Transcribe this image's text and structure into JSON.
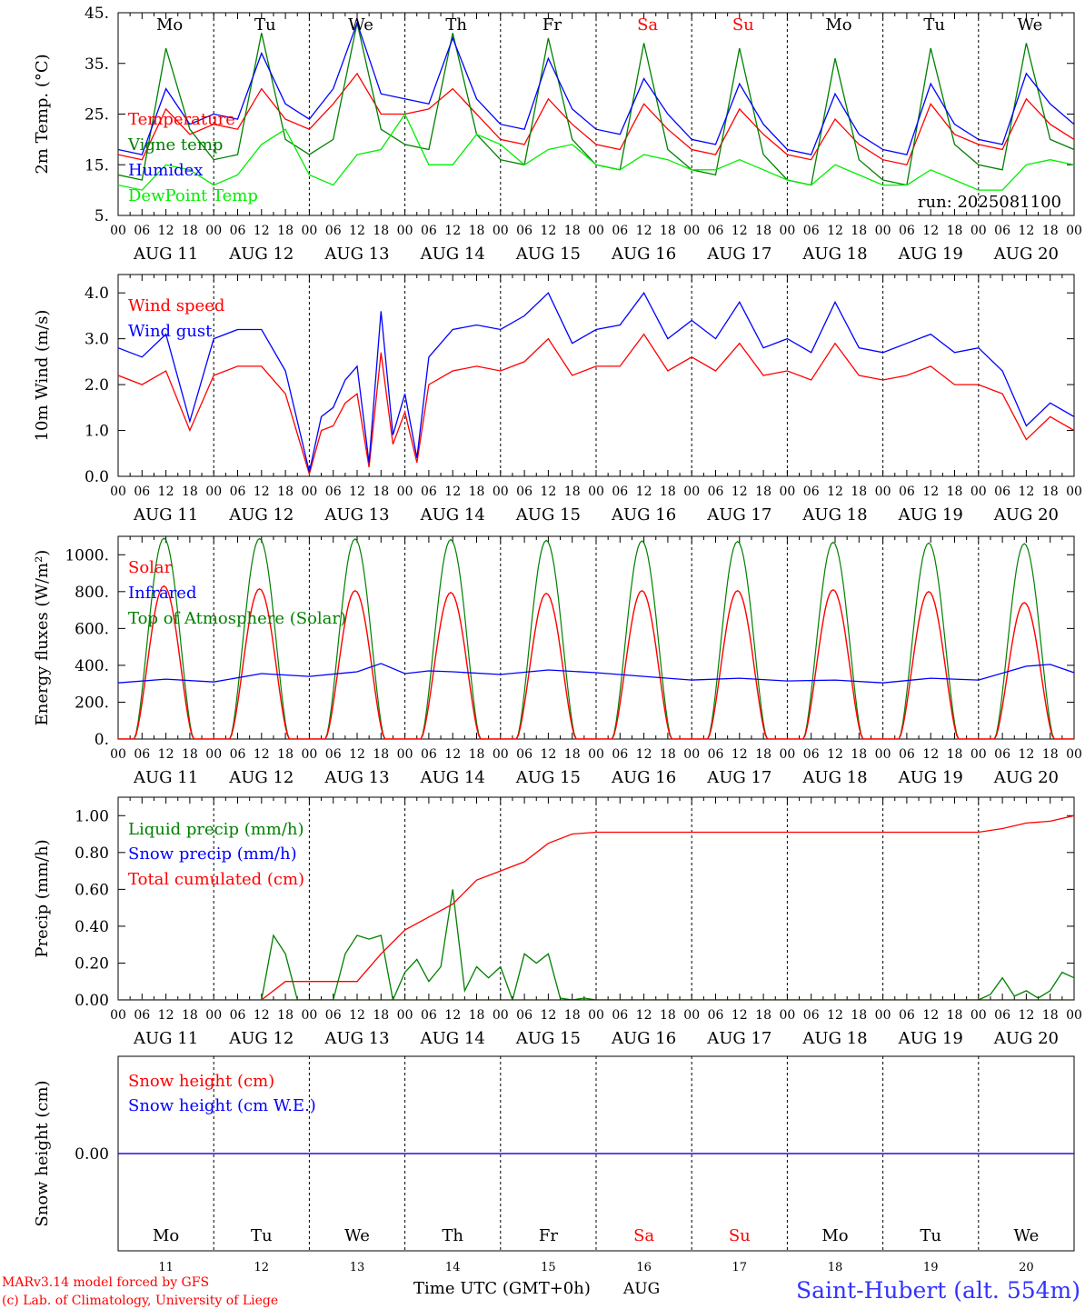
{
  "run_label": "run: 2025081100",
  "footer": {
    "line1": "MARv3.14 model forced by GFS",
    "line2": "(c) Lab. of Climatology, University of Liege",
    "xlabel": "Time UTC (GMT+0h)",
    "month": "AUG",
    "station": "Saint-Hubert (alt. 554m)"
  },
  "days": [
    {
      "name": "Mo",
      "date": "AUG 11",
      "num": "11",
      "weekend": false
    },
    {
      "name": "Tu",
      "date": "AUG 12",
      "num": "12",
      "weekend": false
    },
    {
      "name": "We",
      "date": "AUG 13",
      "num": "13",
      "weekend": false
    },
    {
      "name": "Th",
      "date": "AUG 14",
      "num": "14",
      "weekend": false
    },
    {
      "name": "Fr",
      "date": "AUG 15",
      "num": "15",
      "weekend": false
    },
    {
      "name": "Sa",
      "date": "AUG 16",
      "num": "16",
      "weekend": true
    },
    {
      "name": "Su",
      "date": "AUG 17",
      "num": "17",
      "weekend": true
    },
    {
      "name": "Mo",
      "date": "AUG 18",
      "num": "18",
      "weekend": false
    },
    {
      "name": "Tu",
      "date": "AUG 19",
      "num": "19",
      "weekend": false
    },
    {
      "name": "We",
      "date": "AUG 20",
      "num": "20",
      "weekend": false
    }
  ],
  "hour_ticks": [
    "00",
    "06",
    "12",
    "18"
  ],
  "colors": {
    "red": "#ff0000",
    "green": "#008000",
    "blue": "#0000ff",
    "lime": "#00ee00",
    "axis": "#000000"
  },
  "chart_data": [
    {
      "id": "temp",
      "type": "line",
      "ylabel": "2m Temp. (°C)",
      "ylim": [
        5,
        45
      ],
      "yticks": [
        5,
        15,
        25,
        35,
        45
      ],
      "ytick_labels": [
        "5.",
        "15.",
        "25.",
        "35.",
        "45."
      ],
      "series": [
        {
          "name": "Temperature",
          "color": "#ff0000",
          "x": [
            0,
            6,
            12,
            18,
            24,
            30,
            36,
            42,
            48,
            54,
            60,
            66,
            72,
            78,
            84,
            90,
            96,
            102,
            108,
            114,
            120,
            126,
            132,
            138,
            144,
            150,
            156,
            162,
            168,
            174,
            180,
            186,
            192,
            198,
            204,
            210,
            216,
            222,
            228,
            234,
            240
          ],
          "values": [
            17,
            16,
            26,
            21,
            23,
            22,
            30,
            24,
            22,
            27,
            33,
            25,
            25,
            26,
            30,
            25,
            20,
            19,
            28,
            23,
            19,
            18,
            27,
            22,
            18,
            17,
            26,
            21,
            17,
            16,
            24,
            19,
            16,
            15,
            27,
            21,
            19,
            18,
            28,
            23,
            20
          ]
        },
        {
          "name": "Vigne temp",
          "color": "#008000",
          "x": [
            0,
            6,
            12,
            18,
            24,
            30,
            36,
            42,
            48,
            54,
            60,
            66,
            72,
            78,
            84,
            90,
            96,
            102,
            108,
            114,
            120,
            126,
            132,
            138,
            144,
            150,
            156,
            162,
            168,
            174,
            180,
            186,
            192,
            198,
            204,
            210,
            216,
            222,
            228,
            234,
            240
          ],
          "values": [
            13,
            12,
            38,
            22,
            16,
            17,
            41,
            20,
            17,
            20,
            43,
            22,
            19,
            18,
            41,
            21,
            16,
            15,
            40,
            20,
            15,
            14,
            39,
            18,
            14,
            13,
            38,
            17,
            12,
            11,
            36,
            16,
            12,
            11,
            38,
            19,
            15,
            14,
            39,
            20,
            18
          ]
        },
        {
          "name": "Humidex",
          "color": "#0000ff",
          "x": [
            0,
            6,
            12,
            18,
            24,
            30,
            36,
            42,
            48,
            54,
            60,
            66,
            72,
            78,
            84,
            90,
            96,
            102,
            108,
            114,
            120,
            126,
            132,
            138,
            144,
            150,
            156,
            162,
            168,
            174,
            180,
            186,
            192,
            198,
            204,
            210,
            216,
            222,
            228,
            234,
            240
          ],
          "values": [
            18,
            17,
            30,
            23,
            25,
            24,
            37,
            27,
            24,
            30,
            43,
            29,
            28,
            27,
            40,
            28,
            23,
            22,
            36,
            26,
            22,
            21,
            32,
            25,
            20,
            19,
            31,
            23,
            18,
            17,
            29,
            21,
            18,
            17,
            31,
            23,
            20,
            19,
            33,
            27,
            23
          ]
        },
        {
          "name": "DewPoint Temp",
          "color": "#00ee00",
          "x": [
            0,
            6,
            12,
            18,
            24,
            30,
            36,
            42,
            48,
            54,
            60,
            66,
            72,
            78,
            84,
            90,
            96,
            102,
            108,
            114,
            120,
            126,
            132,
            138,
            144,
            150,
            156,
            162,
            168,
            174,
            180,
            186,
            192,
            198,
            204,
            210,
            216,
            222,
            228,
            234,
            240
          ],
          "values": [
            11,
            10,
            15,
            14,
            11,
            13,
            19,
            22,
            13,
            11,
            17,
            18,
            25,
            15,
            15,
            21,
            19,
            15,
            18,
            19,
            15,
            14,
            17,
            16,
            14,
            14,
            16,
            14,
            12,
            11,
            15,
            13,
            11,
            11,
            14,
            12,
            10,
            10,
            15,
            16,
            15
          ]
        }
      ]
    },
    {
      "id": "wind",
      "type": "line",
      "ylabel": "10m Wind (m/s)",
      "ylim": [
        0,
        4.4
      ],
      "yticks": [
        0,
        1,
        2,
        3,
        4
      ],
      "ytick_labels": [
        "0.0",
        "1.0",
        "2.0",
        "3.0",
        "4.0"
      ],
      "series": [
        {
          "name": "Wind speed",
          "color": "#ff0000",
          "x": [
            0,
            6,
            12,
            18,
            24,
            30,
            36,
            42,
            48,
            51,
            54,
            57,
            60,
            63,
            66,
            69,
            72,
            75,
            78,
            84,
            90,
            96,
            102,
            108,
            114,
            120,
            126,
            132,
            138,
            144,
            150,
            156,
            162,
            168,
            174,
            180,
            186,
            192,
            198,
            204,
            210,
            216,
            222,
            228,
            234,
            240
          ],
          "values": [
            2.2,
            2.0,
            2.3,
            1.0,
            2.2,
            2.4,
            2.4,
            1.8,
            0.05,
            1.0,
            1.1,
            1.6,
            1.8,
            0.2,
            2.7,
            0.7,
            1.4,
            0.3,
            2.0,
            2.3,
            2.4,
            2.3,
            2.5,
            3.0,
            2.2,
            2.4,
            2.4,
            3.1,
            2.3,
            2.6,
            2.3,
            2.9,
            2.2,
            2.3,
            2.1,
            2.9,
            2.2,
            2.1,
            2.2,
            2.4,
            2.0,
            2.0,
            1.8,
            0.8,
            1.3,
            1.0
          ]
        },
        {
          "name": "Wind gust",
          "color": "#0000ff",
          "x": [
            0,
            6,
            12,
            18,
            24,
            30,
            36,
            42,
            48,
            51,
            54,
            57,
            60,
            63,
            66,
            69,
            72,
            75,
            78,
            84,
            90,
            96,
            102,
            108,
            114,
            120,
            126,
            132,
            138,
            144,
            150,
            156,
            162,
            168,
            174,
            180,
            186,
            192,
            198,
            204,
            210,
            216,
            222,
            228,
            234,
            240
          ],
          "values": [
            2.8,
            2.6,
            3.1,
            1.2,
            3.0,
            3.2,
            3.2,
            2.3,
            0.1,
            1.3,
            1.5,
            2.1,
            2.4,
            0.3,
            3.6,
            0.9,
            1.8,
            0.4,
            2.6,
            3.2,
            3.3,
            3.2,
            3.5,
            4.0,
            2.9,
            3.2,
            3.3,
            4.0,
            3.0,
            3.4,
            3.0,
            3.8,
            2.8,
            3.0,
            2.7,
            3.8,
            2.8,
            2.7,
            2.9,
            3.1,
            2.7,
            2.8,
            2.3,
            1.1,
            1.6,
            1.3
          ]
        }
      ]
    },
    {
      "id": "energy",
      "type": "line",
      "ylabel": "Energy fluxes (W/m²)",
      "ylim": [
        0,
        1100
      ],
      "yticks": [
        0,
        200,
        400,
        600,
        800,
        1000
      ],
      "ytick_labels": [
        "0.",
        "200.",
        "400.",
        "600.",
        "800.",
        "1000."
      ],
      "daily_curves": {
        "x_sunrise_hour": 4,
        "x_sunset_hour": 19,
        "solar_peak_values": [
          830,
          815,
          805,
          795,
          790,
          805,
          805,
          810,
          800,
          740
        ],
        "toa_peak_values": [
          1090,
          1088,
          1086,
          1082,
          1078,
          1075,
          1072,
          1068,
          1064,
          1060
        ]
      },
      "series": [
        {
          "name": "Solar",
          "color": "#ff0000"
        },
        {
          "name": "Infrared",
          "color": "#0000ff",
          "x": [
            0,
            12,
            24,
            36,
            48,
            60,
            66,
            72,
            78,
            84,
            96,
            108,
            120,
            132,
            144,
            156,
            168,
            180,
            192,
            204,
            216,
            228,
            234,
            240
          ],
          "values": [
            305,
            325,
            310,
            355,
            340,
            365,
            410,
            355,
            370,
            365,
            350,
            375,
            360,
            340,
            320,
            330,
            315,
            320,
            305,
            330,
            320,
            395,
            405,
            360
          ]
        },
        {
          "name": "Top of Atmosphere (Solar)",
          "color": "#008000"
        }
      ]
    },
    {
      "id": "precip",
      "type": "line",
      "ylabel": "Precip (mm/h)",
      "ylim": [
        0,
        1.1
      ],
      "yticks": [
        0,
        0.2,
        0.4,
        0.6,
        0.8,
        1.0
      ],
      "ytick_labels": [
        "0.00",
        "0.20",
        "0.40",
        "0.60",
        "0.80",
        "1.00"
      ],
      "series": [
        {
          "name": "Liquid precip (mm/h)",
          "color": "#008000",
          "x": [
            0,
            36,
            39,
            42,
            45,
            48,
            54,
            57,
            60,
            63,
            66,
            69,
            72,
            75,
            78,
            81,
            84,
            87,
            90,
            93,
            96,
            99,
            102,
            105,
            108,
            111,
            114,
            117,
            120,
            216,
            219,
            222,
            225,
            228,
            231,
            234,
            237,
            240
          ],
          "values": [
            0,
            0,
            0.35,
            0.25,
            0,
            0,
            0,
            0.25,
            0.35,
            0.33,
            0.35,
            0,
            0.15,
            0.22,
            0.1,
            0.18,
            0.6,
            0.05,
            0.18,
            0.12,
            0.18,
            0,
            0.25,
            0.2,
            0.25,
            0.01,
            0.0,
            0.01,
            0,
            0,
            0.03,
            0.12,
            0.02,
            0.05,
            0.01,
            0.05,
            0.15,
            0.12
          ]
        },
        {
          "name": "Snow precip (mm/h)",
          "color": "#0000ff",
          "x": [
            0,
            240
          ],
          "values": [
            0,
            0
          ]
        },
        {
          "name": "Total cumulated (cm)",
          "color": "#ff0000",
          "x": [
            0,
            36,
            42,
            48,
            54,
            60,
            66,
            72,
            78,
            84,
            90,
            96,
            102,
            108,
            114,
            120,
            144,
            168,
            192,
            216,
            222,
            228,
            234,
            240
          ],
          "values": [
            0,
            0,
            0.1,
            0.1,
            0.1,
            0.1,
            0.25,
            0.38,
            0.45,
            0.52,
            0.65,
            0.7,
            0.75,
            0.85,
            0.9,
            0.91,
            0.91,
            0.91,
            0.91,
            0.91,
            0.93,
            0.96,
            0.97,
            1.0
          ]
        }
      ]
    },
    {
      "id": "snow",
      "type": "line",
      "ylabel": "Snow height (cm)",
      "ylim": [
        -1,
        1
      ],
      "yticks": [
        0
      ],
      "ytick_labels": [
        "0.00"
      ],
      "series": [
        {
          "name": "Snow height (cm)",
          "color": "#ff0000",
          "x": [
            0,
            240
          ],
          "values": [
            0,
            0
          ]
        },
        {
          "name": "Snow height (cm W.E.)",
          "color": "#0000ff",
          "x": [
            0,
            240
          ],
          "values": [
            0,
            0
          ]
        }
      ]
    }
  ]
}
